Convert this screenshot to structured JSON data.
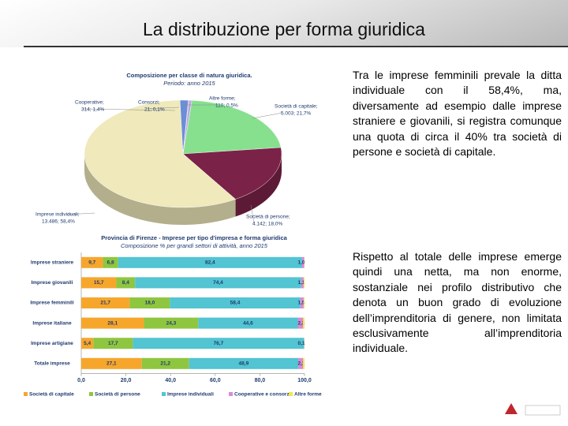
{
  "title": "La distribuzione per forma giuridica",
  "paragraphs": [
    "Tra le imprese femminili prevale la ditta individuale con il 58,4%, ma, diversamente ad esempio dalle imprese straniere e giovanili, si registra comunque una quota di circa il 40% tra società di persone e società di capitale.",
    "Rispetto al totale delle imprese emerge quindi una netta, ma non enorme, sostanziale nei profilo distributivo che denota un buon grado di evoluzione dell’imprenditoria di genere, non limitata esclusivamente all’imprenditoria individuale."
  ],
  "chart_data": [
    {
      "type": "pie",
      "title": "Composizione per classe di natura giuridica.",
      "subtitle": "Periodo: anno 2015",
      "categories": [
        "Società di capitale;",
        "Società di persone;",
        "Imprese individuali;",
        "Cooperative;",
        "Consorzi;",
        "Altre forme;"
      ],
      "values": [
        5003,
        4142,
        13486,
        314,
        21,
        110
      ],
      "value_labels": [
        "5.003; 21,7%",
        "4.142; 18,0%",
        "13.486; 58,4%",
        "314; 1,4%",
        "21; 0,1%",
        "110; 0,5%"
      ],
      "colors": [
        "#86e08e",
        "#7b2248",
        "#efe9bb",
        "#6b8fd6",
        "#c84a4a",
        "#b9a6e6"
      ]
    },
    {
      "type": "stacked_barh",
      "title": "Provincia di Firenze - Imprese per tipo d'impresa e forma giuridica",
      "subtitle": "Composizione % per grandi settori di attività, anno 2015",
      "categories": [
        "Imprese straniere",
        "Imprese giovanili",
        "Imprese femminili",
        "Imprese italiane",
        "Imprese artigiane",
        "Totale imprese"
      ],
      "series": [
        {
          "name": "Società di capitale",
          "color": "#f7a62c",
          "values": [
            9.7,
            15.7,
            21.7,
            28.1,
            5.4,
            27.1
          ],
          "value_labels": [
            "9,7",
            "15,7",
            "21,7",
            "28,1",
            "5,4",
            "27,1"
          ]
        },
        {
          "name": "Società di persone",
          "color": "#8fc640",
          "values": [
            6.8,
            8.4,
            18.0,
            24.3,
            17.7,
            21.2
          ],
          "value_labels": [
            "6,8",
            "8,4",
            "18,0",
            "24,3",
            "17,7",
            "21,2"
          ]
        },
        {
          "name": "Imprese individuali",
          "color": "#52c4d2",
          "values": [
            82.4,
            74.4,
            58.4,
            44.6,
            76.7,
            48.9
          ],
          "value_labels": [
            "82,4",
            "74,4",
            "58,4",
            "44,6",
            "76,7",
            "48,9"
          ]
        },
        {
          "name": "Cooperative e consorzi",
          "color": "#d98ad8",
          "values": [
            1.0,
            1.1,
            1.5,
            2.3,
            0.1,
            2.1
          ],
          "value_labels": [
            "1,0",
            "1,1",
            "1,5",
            "2,3",
            "0,1",
            "2,1"
          ]
        },
        {
          "name": "Altre forme",
          "color": "#f3e64a",
          "values": [
            0.1,
            0.4,
            0.4,
            0.7,
            0.1,
            0.7
          ]
        }
      ],
      "xlim": [
        0,
        100
      ],
      "xticks": [
        {
          "value": 0,
          "label": "0,0"
        },
        {
          "value": 20,
          "label": "20,0"
        },
        {
          "value": 40,
          "label": "40,0"
        },
        {
          "value": 60,
          "label": "60,0"
        },
        {
          "value": 80,
          "label": "80,0"
        },
        {
          "value": 100,
          "label": "100,0"
        }
      ]
    }
  ]
}
